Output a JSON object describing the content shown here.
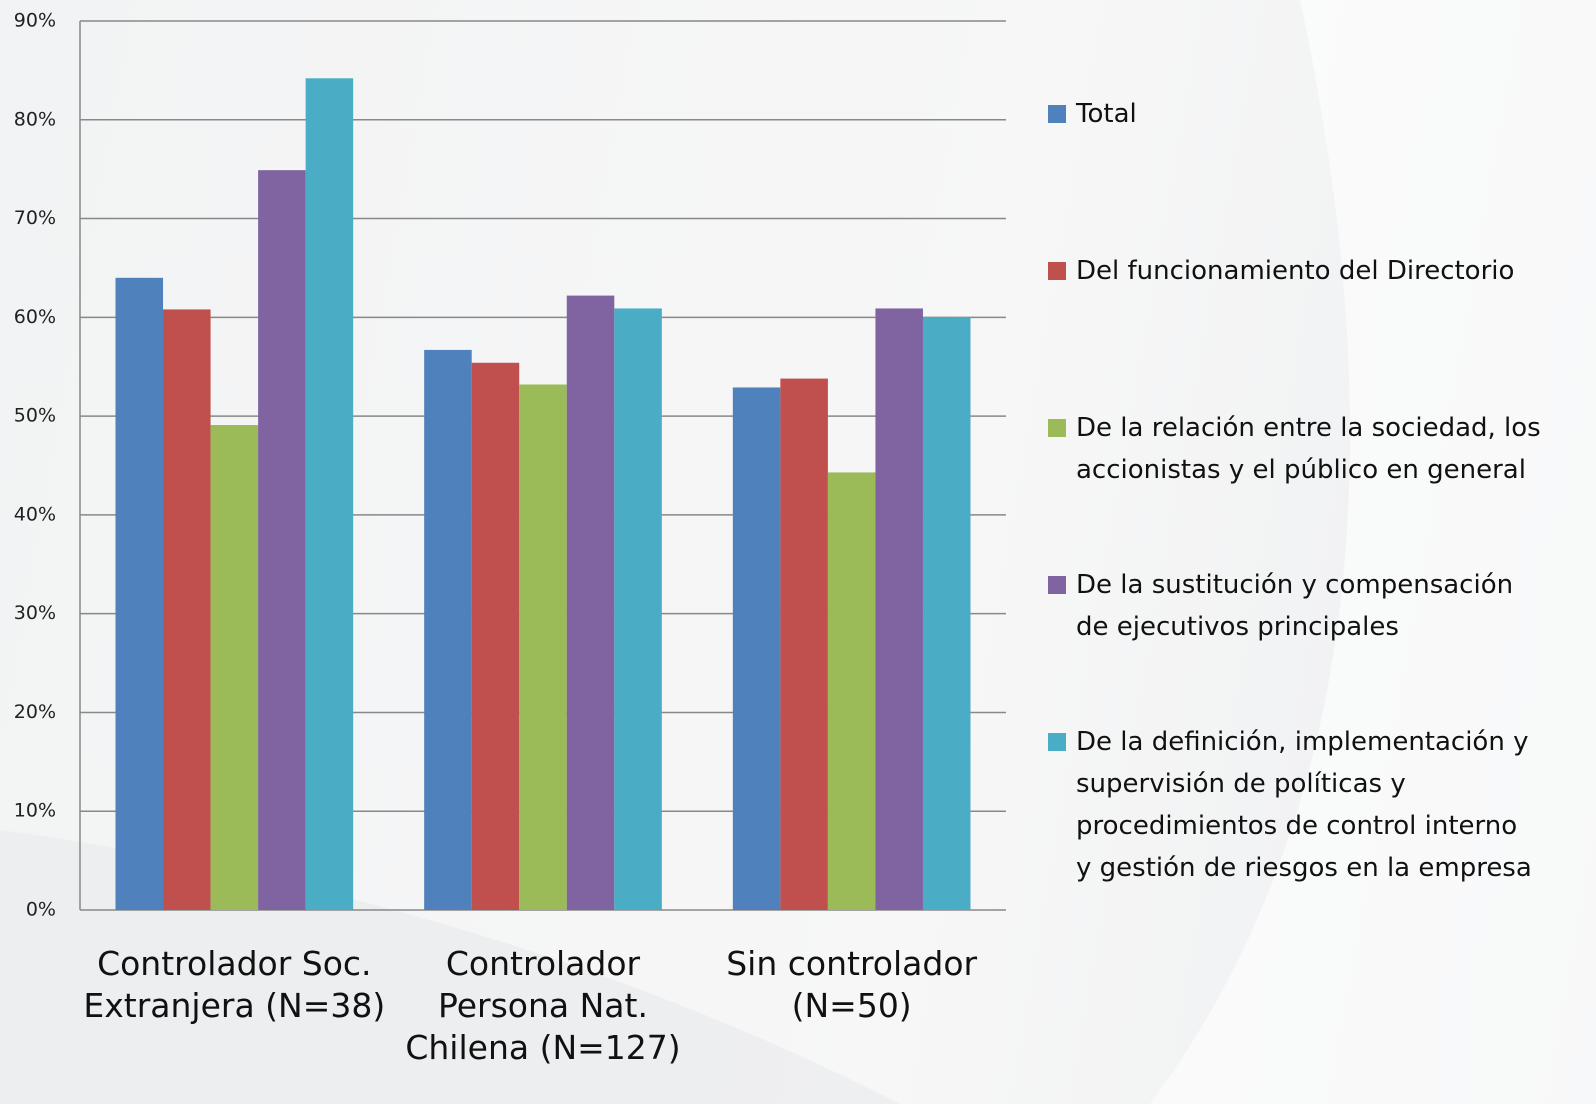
{
  "chart_data": {
    "type": "bar",
    "categories": [
      "Controlador Soc.\nExtranjera (N=38)",
      "Controlador\nPersona Nat.\nChilena (N=127)",
      "Sin controlador\n(N=50)"
    ],
    "series": [
      {
        "name": "Total",
        "color": "#4f81bd",
        "values": [
          64.0,
          56.7,
          52.9
        ]
      },
      {
        "name": "Del funcionamiento del Directorio",
        "color": "#c0504d",
        "values": [
          60.8,
          55.4,
          53.8
        ]
      },
      {
        "name": "De la relación entre la sociedad, los\naccionistas y el público en general",
        "color": "#9bbb59",
        "values": [
          49.1,
          53.2,
          44.3
        ]
      },
      {
        "name": "De la sustitución y compensación\nde ejecutivos principales",
        "color": "#8064a2",
        "values": [
          74.9,
          62.2,
          60.9
        ]
      },
      {
        "name": "De la definición, implementación y\nsupervisión de políticas y\nprocedimientos de control interno\ny gestión de riesgos en la empresa",
        "color": "#4bacc6",
        "values": [
          84.2,
          60.9,
          60.0
        ]
      }
    ],
    "ylim": [
      0,
      90
    ],
    "yticks": [
      {
        "value": 0,
        "label": "0%"
      },
      {
        "value": 10,
        "label": "10%"
      },
      {
        "value": 20,
        "label": "20%"
      },
      {
        "value": 30,
        "label": "30%"
      },
      {
        "value": 40,
        "label": "40%"
      },
      {
        "value": 50,
        "label": "50%"
      },
      {
        "value": 60,
        "label": "60%"
      },
      {
        "value": 70,
        "label": "70%"
      },
      {
        "value": 80,
        "label": "80%"
      },
      {
        "value": 90,
        "label": "90%"
      }
    ],
    "grid": true,
    "legend": "right"
  }
}
